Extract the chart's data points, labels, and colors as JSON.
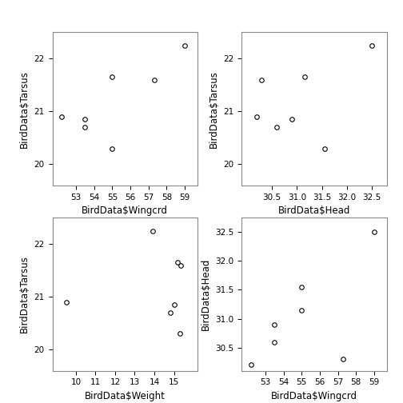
{
  "sparrow_data": {
    "Wingcrd": [
      52.2,
      53.5,
      53.5,
      55.0,
      55.0,
      57.3,
      59.0
    ],
    "Tarsus": [
      20.9,
      20.7,
      20.85,
      21.65,
      20.3,
      21.6,
      22.25
    ],
    "Head": [
      30.2,
      30.6,
      30.9,
      31.15,
      31.55,
      30.3,
      32.5
    ],
    "Weight": [
      9.5,
      14.8,
      15.0,
      15.2,
      15.3,
      15.35,
      13.9
    ],
    "HeadWeight": [
      30.2,
      30.6,
      30.3,
      31.15,
      31.55,
      30.3,
      32.5
    ]
  },
  "plots": [
    {
      "x_key": "Wingcrd",
      "y_key": "Tarsus",
      "xlabel": "BirdData$Wingcrd",
      "ylabel": "BirdData$Tarsus",
      "xlim": [
        51.7,
        59.7
      ],
      "ylim": [
        19.6,
        22.5
      ],
      "xticks": [
        53,
        54,
        55,
        56,
        57,
        58,
        59
      ],
      "yticks": [
        20.0,
        21.0,
        22.0
      ],
      "ytick_labels": [
        "20.0",
        "21.0",
        "22.0"
      ]
    },
    {
      "x_key": "Head",
      "y_key": "Tarsus",
      "xlabel": "BirdData$Head",
      "ylabel": "BirdData$Tarsus",
      "xlim": [
        29.9,
        32.8
      ],
      "ylim": [
        19.6,
        22.5
      ],
      "xticks": [
        30.5,
        31.0,
        31.5,
        32.0,
        32.5
      ],
      "yticks": [
        20.0,
        21.0,
        22.0
      ],
      "ytick_labels": [
        "20.0",
        "21.0",
        "22.0"
      ]
    },
    {
      "x_key": "Weight",
      "y_key": "Tarsus",
      "xlabel": "BirdData$Weight",
      "ylabel": "BirdData$Tarsus",
      "xlim": [
        8.8,
        16.2
      ],
      "ylim": [
        19.6,
        22.5
      ],
      "xticks": [
        10,
        11,
        12,
        13,
        14,
        15
      ],
      "yticks": [
        20.0,
        21.0,
        22.0
      ],
      "ytick_labels": [
        "20.0",
        "21.0",
        "22.0"
      ]
    },
    {
      "x_key": "Wingcrd",
      "y_key": "Head",
      "xlabel": "BirdData$Wingcrd",
      "ylabel": "BirdData$Head",
      "xlim": [
        51.7,
        59.7
      ],
      "ylim": [
        30.1,
        32.75
      ],
      "xticks": [
        53,
        54,
        55,
        56,
        57,
        58,
        59
      ],
      "yticks": [
        30.5,
        31.0,
        31.5,
        32.0,
        32.5
      ],
      "ytick_labels": [
        "30.5",
        "31.0",
        "31.5",
        "32.0",
        "32.5"
      ]
    }
  ],
  "marker": "o",
  "markerfacecolor": "white",
  "markeredgecolor": "#000000",
  "markersize": 4,
  "markeredgewidth": 0.8,
  "bg_color": "#ffffff",
  "spine_color": "#888888",
  "tick_fontsize": 7.5,
  "label_fontsize": 8.5
}
